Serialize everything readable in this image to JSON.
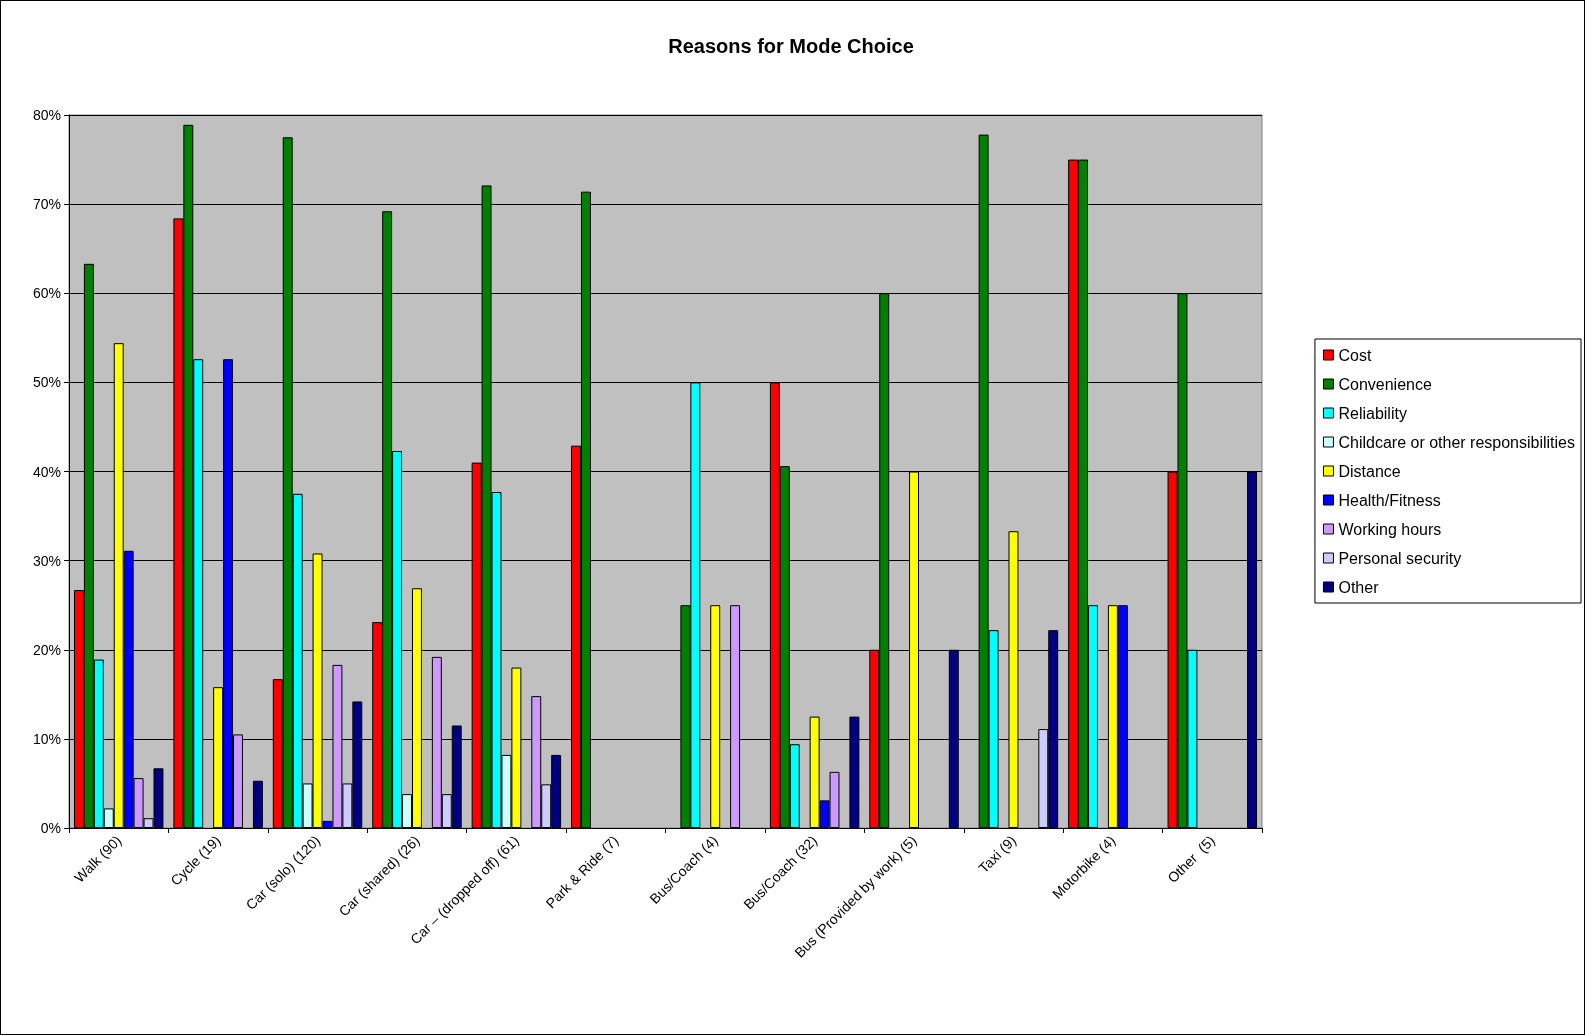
{
  "chart_data": {
    "type": "bar",
    "title": "Reasons for Mode Choice",
    "categories": [
      "Walk (90)",
      "Cycle (19)",
      "Car (solo) (120)",
      "Car (shared) (26)",
      "Car – (dropped off) (61)",
      "Park & Ride (7)",
      "Bus/Coach (4)",
      "Bus/Coach (32)",
      "Bus (Provided by work) (5)",
      "Taxi (9)",
      "Motorbike (4)",
      "Other  (5)"
    ],
    "series": [
      {
        "name": "Cost",
        "color": "#ff0000",
        "values": [
          26.7,
          68.4,
          16.7,
          23.1,
          41.0,
          42.9,
          0,
          50,
          20,
          0,
          75,
          40
        ]
      },
      {
        "name": "Convenience",
        "color": "#008000",
        "values": [
          63.3,
          78.9,
          77.5,
          69.2,
          72.1,
          71.4,
          25,
          40.6,
          60,
          77.8,
          75,
          60
        ]
      },
      {
        "name": "Reliability",
        "color": "#00ffff",
        "values": [
          18.9,
          52.6,
          37.5,
          42.3,
          37.7,
          0,
          50,
          9.4,
          0,
          22.2,
          25,
          20
        ]
      },
      {
        "name": "Childcare or other responsibilities",
        "color": "#ccffff",
        "values": [
          2.2,
          0,
          5.0,
          3.8,
          8.2,
          0,
          0,
          0,
          0,
          0,
          0,
          0
        ]
      },
      {
        "name": "Distance",
        "color": "#ffff00",
        "values": [
          54.4,
          15.8,
          30.8,
          26.9,
          18.0,
          0,
          25,
          12.5,
          40,
          33.3,
          25,
          0
        ]
      },
      {
        "name": "Health/Fitness",
        "color": "#0000ff",
        "values": [
          31.1,
          52.6,
          0.8,
          0,
          0,
          0,
          0,
          3.1,
          0,
          0,
          25,
          0
        ]
      },
      {
        "name": "Working hours",
        "color": "#cc99ff",
        "values": [
          5.6,
          10.5,
          18.3,
          19.2,
          14.8,
          0,
          25,
          6.3,
          0,
          0,
          0,
          0
        ]
      },
      {
        "name": "Personal security",
        "color": "#ccccff",
        "values": [
          1.1,
          0,
          5.0,
          3.8,
          4.9,
          0,
          0,
          0,
          0,
          11.1,
          0,
          0
        ]
      },
      {
        "name": "Other",
        "color": "#000080",
        "values": [
          6.7,
          5.3,
          14.2,
          11.5,
          8.2,
          0,
          0,
          12.5,
          20,
          22.2,
          0,
          40
        ]
      }
    ],
    "ylim": [
      0,
      80
    ],
    "yticks": [
      {
        "value": 0,
        "label": "0%"
      },
      {
        "value": 10,
        "label": "10%"
      },
      {
        "value": 20,
        "label": "20%"
      },
      {
        "value": 30,
        "label": "30%"
      },
      {
        "value": 40,
        "label": "40%"
      },
      {
        "value": 50,
        "label": "50%"
      },
      {
        "value": 60,
        "label": "60%"
      },
      {
        "value": 70,
        "label": "70%"
      },
      {
        "value": 80,
        "label": "80%"
      }
    ],
    "grid": "y",
    "legend": "right"
  }
}
